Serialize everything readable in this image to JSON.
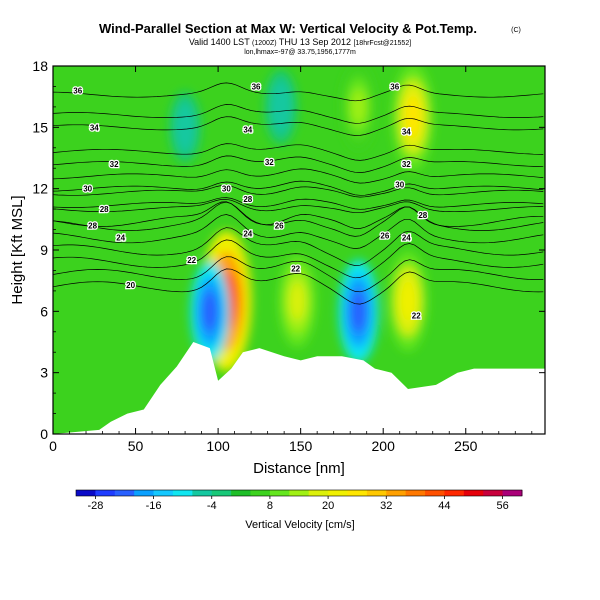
{
  "title": "Wind-Parallel Section at Max W: Vertical Velocity & Pot.Temp.",
  "title_mark": "(C)",
  "subtitle_a": "Valid 1400 LST",
  "subtitle_b": "(1200Z)",
  "subtitle_c": "THU 13 Sep 2012",
  "subtitle_d": "[18hrFcst@21552]",
  "subtitle_line2": "lon,lhmax=-97@ 33.75,1956,1777m",
  "colors": {
    "scale": [
      "#0a0ac8",
      "#1e3cff",
      "#2860ff",
      "#0aa0ff",
      "#14c8ff",
      "#10e6f0",
      "#14c8a0",
      "#18c878",
      "#1ebe28",
      "#3cd21e",
      "#64e61e",
      "#a0f014",
      "#dcf00a",
      "#f0f000",
      "#ffe600",
      "#ffc800",
      "#ffa000",
      "#ff7800",
      "#ff5000",
      "#ff2800",
      "#e6000a",
      "#c8003c",
      "#aa0078"
    ],
    "terrain": "#ffffff",
    "contour": "#000000"
  },
  "chart_data": {
    "type": "heatmap",
    "xlabel": "Distance [nm]",
    "ylabel": "Height [Kft MSL]",
    "xlim": [
      0,
      298
    ],
    "ylim": [
      0,
      18
    ],
    "xticks": [
      0,
      50,
      100,
      150,
      200,
      250
    ],
    "yticks": [
      0,
      3,
      6,
      9,
      12,
      15,
      18
    ],
    "colorbar": {
      "label": "Vertical Velocity [cm/s]",
      "ticks": [
        -28,
        -16,
        -4,
        8,
        20,
        32,
        44,
        56
      ],
      "range": [
        -32,
        60
      ]
    },
    "vertical_velocity_features": [
      {
        "x": 105,
        "y": 6.5,
        "w": 45,
        "desc": "strong updraft"
      },
      {
        "x": 95,
        "y": 6,
        "w": -22,
        "desc": "downdraft"
      },
      {
        "x": 185,
        "y": 6,
        "w": -24,
        "desc": "downdraft"
      },
      {
        "x": 215,
        "y": 6.5,
        "w": 22,
        "desc": "updraft"
      },
      {
        "x": 148,
        "y": 6.5,
        "w": 18,
        "desc": "updraft"
      },
      {
        "x": 218,
        "y": 15.5,
        "w": 26,
        "desc": "upper updraft"
      },
      {
        "x": 185,
        "y": 16,
        "w": 14,
        "desc": "upper updraft"
      },
      {
        "x": 138,
        "y": 16,
        "w": -8,
        "desc": "upper downdraft"
      },
      {
        "x": 80,
        "y": 15,
        "w": -6,
        "desc": "upper downdraft"
      }
    ],
    "terrain_profile": [
      {
        "x": 0,
        "h": 0
      },
      {
        "x": 28,
        "h": 0.2
      },
      {
        "x": 35,
        "h": 0.6
      },
      {
        "x": 45,
        "h": 1.0
      },
      {
        "x": 55,
        "h": 1.2
      },
      {
        "x": 65,
        "h": 2.4
      },
      {
        "x": 75,
        "h": 3.3
      },
      {
        "x": 85,
        "h": 4.5
      },
      {
        "x": 95,
        "h": 4.2
      },
      {
        "x": 100,
        "h": 2.6
      },
      {
        "x": 108,
        "h": 3.2
      },
      {
        "x": 115,
        "h": 4.0
      },
      {
        "x": 125,
        "h": 4.2
      },
      {
        "x": 140,
        "h": 3.8
      },
      {
        "x": 150,
        "h": 3.6
      },
      {
        "x": 160,
        "h": 3.8
      },
      {
        "x": 175,
        "h": 3.8
      },
      {
        "x": 188,
        "h": 3.6
      },
      {
        "x": 195,
        "h": 3.2
      },
      {
        "x": 205,
        "h": 3.0
      },
      {
        "x": 215,
        "h": 2.2
      },
      {
        "x": 232,
        "h": 2.4
      },
      {
        "x": 245,
        "h": 3.0
      },
      {
        "x": 255,
        "h": 3.2
      },
      {
        "x": 270,
        "h": 3.2
      },
      {
        "x": 298,
        "h": 3.2
      }
    ],
    "theta_contours": [
      {
        "value": 20,
        "level": 7.2
      },
      {
        "value": 22,
        "level": 8.4
      },
      {
        "value": 24,
        "level": 9.6
      },
      {
        "value": 26,
        "level": 10.4
      },
      {
        "value": 28,
        "level": 11.2
      },
      {
        "value": 30,
        "level": 12.0
      },
      {
        "value": 32,
        "level": 13.2
      },
      {
        "value": 34,
        "level": 15.0
      },
      {
        "value": 36,
        "level": 16.6
      }
    ],
    "contour_labels": [
      {
        "text": "36",
        "x": 15,
        "y": 16.8
      },
      {
        "text": "34",
        "x": 25,
        "y": 15.0
      },
      {
        "text": "32",
        "x": 37,
        "y": 13.2
      },
      {
        "text": "30",
        "x": 21,
        "y": 12.0
      },
      {
        "text": "28",
        "x": 31,
        "y": 11.0
      },
      {
        "text": "28",
        "x": 24,
        "y": 10.2
      },
      {
        "text": "24",
        "x": 41,
        "y": 9.6
      },
      {
        "text": "22",
        "x": 84,
        "y": 8.5
      },
      {
        "text": "20",
        "x": 47,
        "y": 7.3
      },
      {
        "text": "36",
        "x": 123,
        "y": 17.0
      },
      {
        "text": "34",
        "x": 118,
        "y": 14.9
      },
      {
        "text": "32",
        "x": 131,
        "y": 13.3
      },
      {
        "text": "30",
        "x": 105,
        "y": 12.0
      },
      {
        "text": "28",
        "x": 118,
        "y": 11.5
      },
      {
        "text": "26",
        "x": 137,
        "y": 10.2
      },
      {
        "text": "24",
        "x": 118,
        "y": 9.8
      },
      {
        "text": "22",
        "x": 147,
        "y": 8.1
      },
      {
        "text": "36",
        "x": 207,
        "y": 17.0
      },
      {
        "text": "34",
        "x": 214,
        "y": 14.8
      },
      {
        "text": "32",
        "x": 214,
        "y": 13.2
      },
      {
        "text": "30",
        "x": 210,
        "y": 12.2
      },
      {
        "text": "28",
        "x": 224,
        "y": 10.7
      },
      {
        "text": "26",
        "x": 201,
        "y": 9.7
      },
      {
        "text": "24",
        "x": 214,
        "y": 9.6
      },
      {
        "text": "22",
        "x": 220,
        "y": 5.8
      }
    ]
  }
}
